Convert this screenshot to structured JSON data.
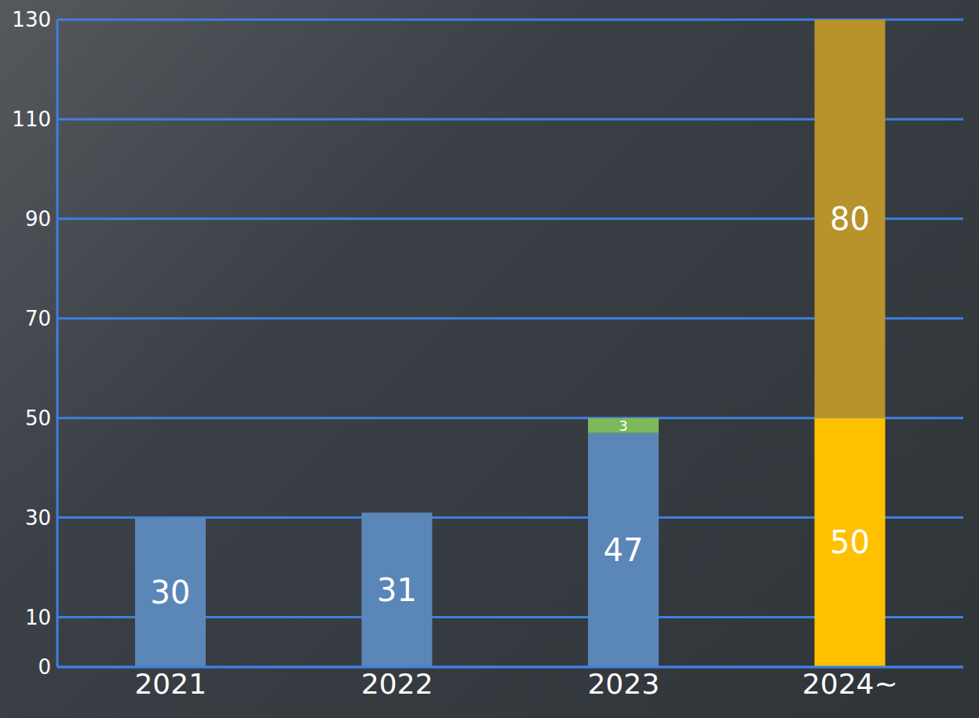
{
  "chart_data": {
    "type": "bar",
    "categories": [
      "2021",
      "2022",
      "2023",
      "2024~"
    ],
    "series": [
      {
        "color": "#5b86b8",
        "values": [
          30,
          31,
          47,
          null
        ]
      },
      {
        "color": "#7db85a",
        "values": [
          null,
          null,
          3,
          null
        ]
      },
      {
        "color": "#ffc000",
        "values": [
          null,
          null,
          null,
          50
        ]
      },
      {
        "color": "#b8922a",
        "values": [
          null,
          null,
          null,
          80
        ]
      }
    ],
    "ylim": [
      0,
      130
    ],
    "yticks": [
      0,
      10,
      30,
      50,
      70,
      90,
      110,
      130
    ],
    "grid": true,
    "stacked": true,
    "data_labels": true
  }
}
